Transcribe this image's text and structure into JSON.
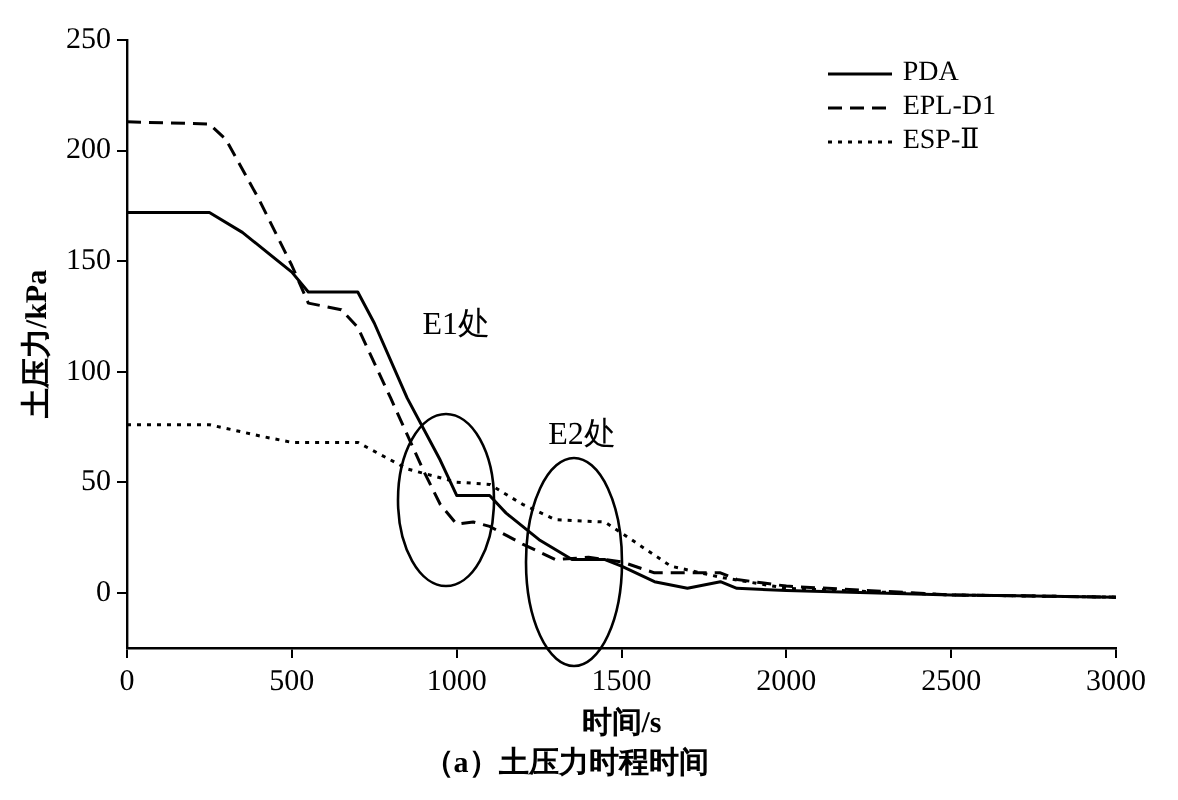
{
  "chart_data": {
    "type": "line",
    "title": "（a）土压力时程时间",
    "xlabel": "时间/s",
    "ylabel": "土压力/kPa",
    "xlim": [
      0,
      3000
    ],
    "xticks": [
      0,
      500,
      1000,
      1500,
      2000,
      2500,
      3000
    ],
    "ylim": [
      -25,
      250
    ],
    "yticks": [
      0,
      50,
      100,
      150,
      200,
      250
    ],
    "grid": false,
    "legend": "top right",
    "marker": "none",
    "annotations": [
      "E1处",
      "E2处"
    ],
    "series": [
      {
        "name": "PDA",
        "color": "#000000",
        "line_style": "solid",
        "x": [
          0,
          250,
          350,
          500,
          550,
          700,
          750,
          850,
          950,
          1000,
          1100,
          1150,
          1250,
          1350,
          1450,
          1500,
          1600,
          1700,
          1800,
          1850,
          2000,
          2500,
          3000
        ],
        "values": [
          172,
          172,
          163,
          145,
          136,
          136,
          122,
          88,
          60,
          44,
          44,
          36,
          24,
          15,
          15,
          12,
          5,
          2,
          5,
          2,
          1,
          -1,
          -2
        ]
      },
      {
        "name": "EPL-D1",
        "color": "#000000",
        "line_style": "dashed",
        "x": [
          0,
          250,
          300,
          400,
          500,
          550,
          650,
          700,
          800,
          900,
          950,
          1000,
          1050,
          1100,
          1200,
          1300,
          1400,
          1500,
          1600,
          1800,
          1850,
          2000,
          2500,
          3000
        ],
        "values": [
          213,
          212,
          205,
          178,
          148,
          131,
          128,
          120,
          88,
          55,
          40,
          31,
          32,
          30,
          22,
          15,
          16,
          14,
          9,
          9,
          6,
          3,
          -1,
          -2
        ]
      },
      {
        "name": "ESP-Ⅱ",
        "color": "#000000",
        "line_style": "dotted",
        "x": [
          0,
          250,
          400,
          500,
          700,
          850,
          1000,
          1100,
          1200,
          1300,
          1450,
          1500,
          1650,
          1800,
          2000,
          2500,
          3000
        ],
        "values": [
          76,
          76,
          71,
          68,
          68,
          56,
          50,
          49,
          40,
          33,
          32,
          27,
          12,
          7,
          2,
          -1,
          -2
        ]
      }
    ]
  }
}
